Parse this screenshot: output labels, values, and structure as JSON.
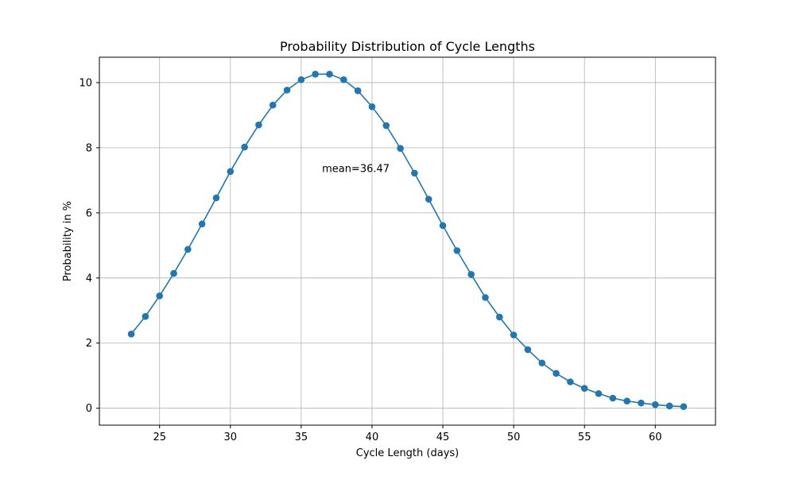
{
  "chart_data": {
    "type": "line",
    "title": "Probability Distribution of Cycle Lengths",
    "xlabel": "Cycle Length (days)",
    "ylabel": "Probability in %",
    "xlim": [
      20.75,
      64.25
    ],
    "ylim": [
      -0.52,
      10.78
    ],
    "xticks": [
      25,
      30,
      35,
      40,
      45,
      50,
      55,
      60
    ],
    "yticks": [
      0,
      2,
      4,
      6,
      8,
      10
    ],
    "grid": true,
    "marker": "circle",
    "series_color": "#1f77b4",
    "x": [
      23,
      24,
      25,
      26,
      27,
      28,
      29,
      30,
      31,
      32,
      33,
      34,
      35,
      36,
      37,
      38,
      39,
      40,
      41,
      42,
      43,
      44,
      45,
      46,
      47,
      48,
      49,
      50,
      51,
      52,
      53,
      54,
      55,
      56,
      57,
      58,
      59,
      60,
      61,
      62
    ],
    "y": [
      2.28,
      2.82,
      3.45,
      4.14,
      4.88,
      5.66,
      6.46,
      7.27,
      8.02,
      8.7,
      9.31,
      9.77,
      10.09,
      10.26,
      10.26,
      10.09,
      9.75,
      9.26,
      8.68,
      7.98,
      7.22,
      6.42,
      5.61,
      4.84,
      4.11,
      3.4,
      2.8,
      2.25,
      1.8,
      1.39,
      1.07,
      0.81,
      0.61,
      0.45,
      0.31,
      0.22,
      0.16,
      0.11,
      0.07,
      0.05
    ],
    "annotations": [
      {
        "text": "mean=36.47",
        "x": 36.47,
        "y": 7.25
      }
    ]
  }
}
